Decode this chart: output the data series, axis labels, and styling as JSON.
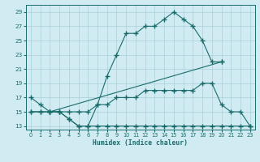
{
  "xlabel": "Humidex (Indice chaleur)",
  "background_color": "#d0ecf2",
  "grid_color": "#aacfd8",
  "line_color": "#1a6b6b",
  "xlim": [
    -0.5,
    23.5
  ],
  "ylim": [
    12.5,
    30
  ],
  "yticks": [
    13,
    15,
    17,
    19,
    21,
    23,
    25,
    27,
    29
  ],
  "xticks": [
    0,
    1,
    2,
    3,
    4,
    5,
    6,
    7,
    8,
    9,
    10,
    11,
    12,
    13,
    14,
    15,
    16,
    17,
    18,
    19,
    20,
    21,
    22,
    23
  ],
  "series1_x": [
    0,
    1,
    2,
    3,
    4,
    5,
    6,
    7,
    8,
    9,
    10,
    11,
    12,
    13,
    14,
    15,
    16,
    17,
    18,
    19,
    20
  ],
  "series1_y": [
    17,
    16,
    15,
    15,
    14,
    13,
    13,
    16,
    20,
    23,
    26,
    26,
    27,
    27,
    28,
    29,
    28,
    27,
    25,
    22,
    22
  ],
  "series2_x": [
    2,
    20
  ],
  "series2_y": [
    15,
    22
  ],
  "series3_x": [
    0,
    1,
    2,
    3,
    4,
    5,
    6,
    7,
    8,
    9,
    10,
    11,
    12,
    13,
    14,
    15,
    16,
    17,
    18,
    19,
    20,
    21,
    22,
    23
  ],
  "series3_y": [
    15,
    15,
    15,
    15,
    15,
    15,
    15,
    16,
    16,
    17,
    17,
    17,
    18,
    18,
    18,
    18,
    18,
    18,
    19,
    19,
    16,
    15,
    15,
    13
  ],
  "series4_x": [
    0,
    1,
    2,
    3,
    4,
    5,
    6,
    7,
    8,
    9,
    10,
    11,
    12,
    13,
    14,
    15,
    16,
    17,
    18,
    19,
    20,
    21,
    22,
    23
  ],
  "series4_y": [
    15,
    15,
    15,
    15,
    14,
    13,
    13,
    13,
    13,
    13,
    13,
    13,
    13,
    13,
    13,
    13,
    13,
    13,
    13,
    13,
    13,
    13,
    13,
    13
  ]
}
